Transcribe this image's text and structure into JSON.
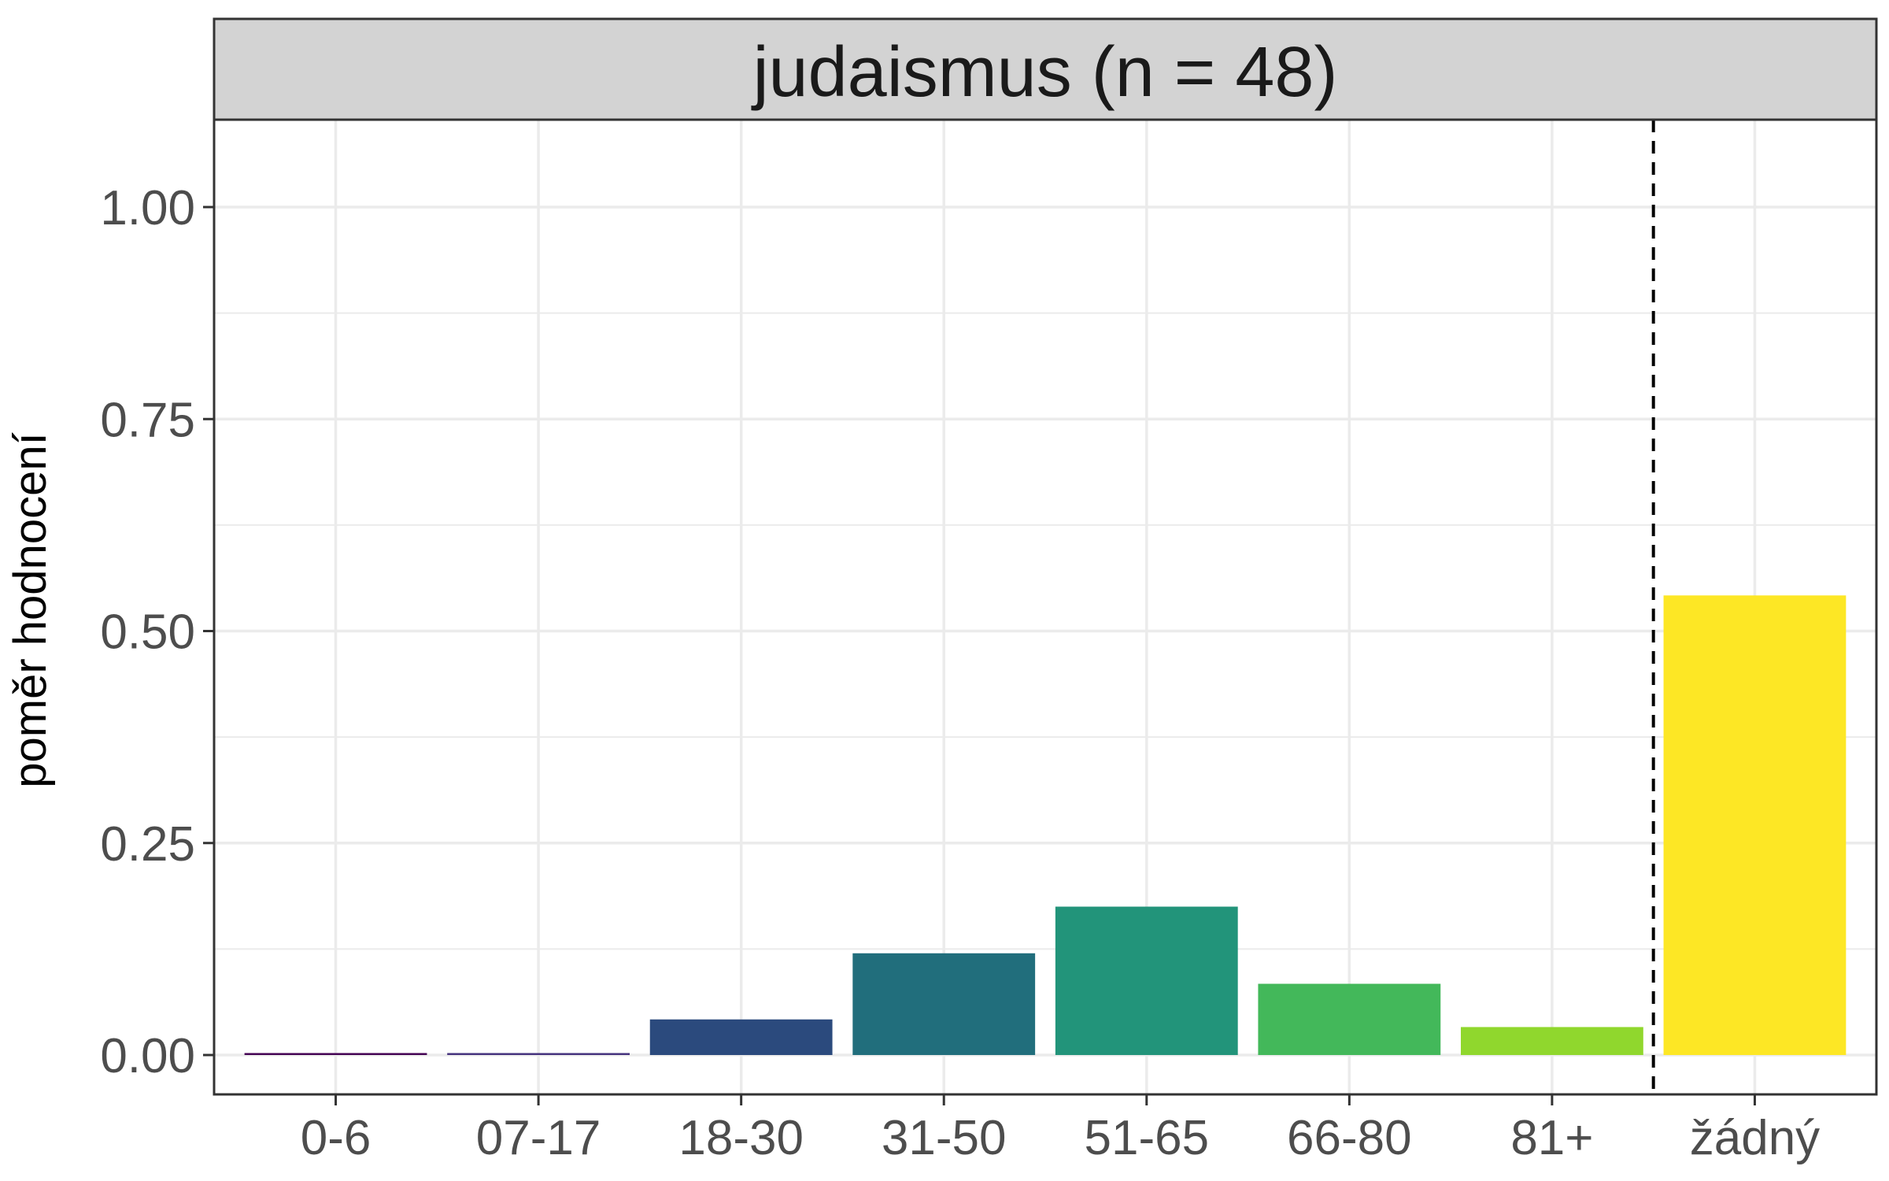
{
  "chart_data": {
    "type": "bar",
    "title": "judaismus (n = 48)",
    "xlabel": "",
    "ylabel": "poměr hodnocení",
    "ylim": [
      0,
      1.1
    ],
    "yticks": [
      "0.00",
      "0.25",
      "0.50",
      "0.75",
      "1.00"
    ],
    "ytick_values": [
      0,
      0.25,
      0.5,
      0.75,
      1.0
    ],
    "categories": [
      "0-6",
      "07-17",
      "18-30",
      "31-50",
      "51-65",
      "66-80",
      "81+",
      "žádný"
    ],
    "values": [
      0.0,
      0.0,
      0.042,
      0.12,
      0.175,
      0.084,
      0.033,
      0.542
    ],
    "colors": [
      "#440154",
      "#46337e",
      "#2b4a7d",
      "#216e7c",
      "#22947a",
      "#43b85a",
      "#90d72d",
      "#fde725"
    ],
    "separator": {
      "after_category": "81+",
      "style": "dashed"
    },
    "grid": true,
    "legend": "none"
  }
}
